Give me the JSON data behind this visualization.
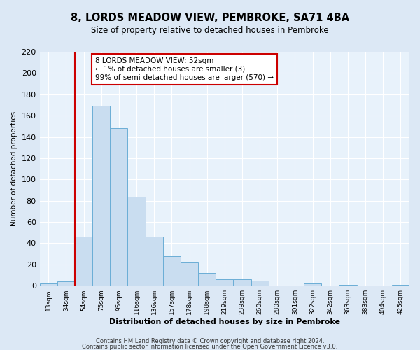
{
  "title": "8, LORDS MEADOW VIEW, PEMBROKE, SA71 4BA",
  "subtitle": "Size of property relative to detached houses in Pembroke",
  "xlabel": "Distribution of detached houses by size in Pembroke",
  "ylabel": "Number of detached properties",
  "bin_labels": [
    "13sqm",
    "34sqm",
    "54sqm",
    "75sqm",
    "95sqm",
    "116sqm",
    "136sqm",
    "157sqm",
    "178sqm",
    "198sqm",
    "219sqm",
    "239sqm",
    "260sqm",
    "280sqm",
    "301sqm",
    "322sqm",
    "342sqm",
    "363sqm",
    "383sqm",
    "404sqm",
    "425sqm"
  ],
  "bar_heights": [
    2,
    4,
    46,
    169,
    148,
    84,
    46,
    28,
    22,
    12,
    6,
    6,
    5,
    0,
    0,
    2,
    0,
    1,
    0,
    0,
    1
  ],
  "bar_color": "#c9ddf0",
  "bar_edge_color": "#6baed6",
  "vline_x": 1.5,
  "vline_color": "#cc0000",
  "annotation_title": "8 LORDS MEADOW VIEW: 52sqm",
  "annotation_line1": "← 1% of detached houses are smaller (3)",
  "annotation_line2": "99% of semi-detached houses are larger (570) →",
  "annotation_box_color": "#cc0000",
  "ylim": [
    0,
    220
  ],
  "yticks": [
    0,
    20,
    40,
    60,
    80,
    100,
    120,
    140,
    160,
    180,
    200,
    220
  ],
  "footer1": "Contains HM Land Registry data © Crown copyright and database right 2024.",
  "footer2": "Contains public sector information licensed under the Open Government Licence v3.0.",
  "bg_color": "#dce8f5",
  "plot_bg_color": "#e8f2fb",
  "title_fontsize": 10.5,
  "subtitle_fontsize": 8.5,
  "xlabel_fontsize": 8,
  "ylabel_fontsize": 7.5
}
